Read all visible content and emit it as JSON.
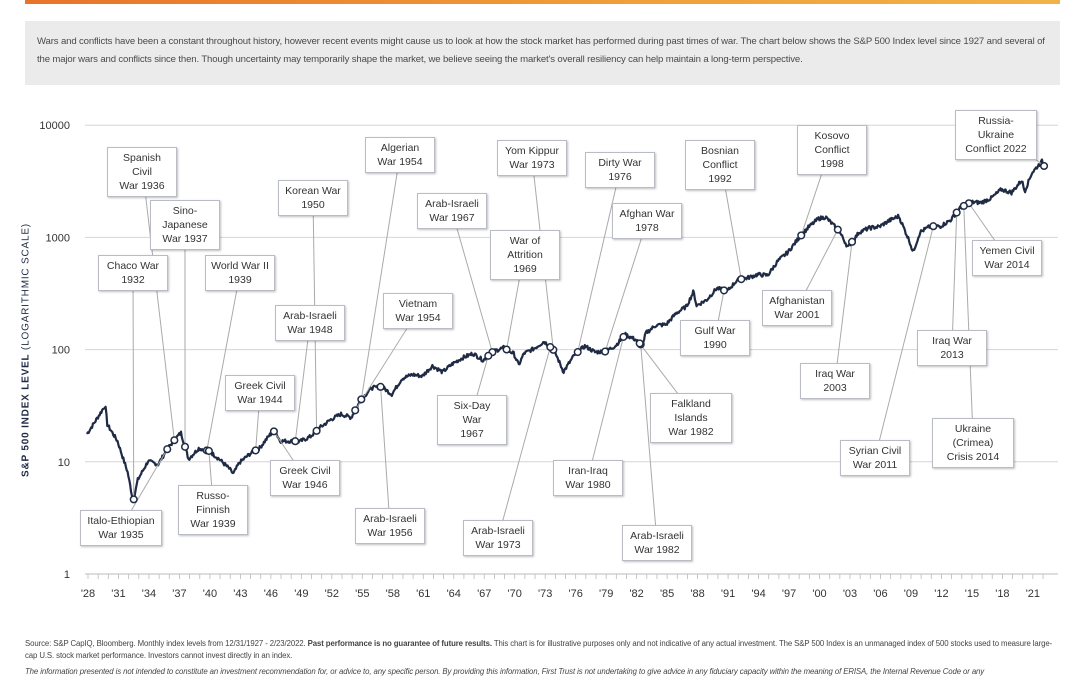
{
  "intro": "Wars and conflicts have been a constant throughout history, however recent events might cause us to look at how the stock market has performed during past times of war. The chart below shows the S&P 500 Index level since 1927 and several of the major wars and conflicts since then. Though uncertainty may temporarily shape the market, we believe seeing the market's overall resiliency can help maintain a long-term perspective.",
  "colors": {
    "accent_bar": "#e8742a",
    "line": "#1f2a44",
    "intro_bg": "#ebebeb"
  },
  "chart_data": {
    "type": "line",
    "ylabel_bold": "S&P 500 INDEX LEVEL",
    "ylabel_light": "(LOGARITHMIC SCALE)",
    "yscale": "log",
    "ylim": [
      1,
      10000
    ],
    "yticks": [
      "1",
      "10",
      "100",
      "1000",
      "10000"
    ],
    "yticks_values": [
      1,
      10,
      100,
      1000,
      10000
    ],
    "xlim": [
      1927.9,
      2022.2
    ],
    "xticks": [
      "'28",
      "'31",
      "'34",
      "'37",
      "'40",
      "'43",
      "'46",
      "'49",
      "'52",
      "'55",
      "'58",
      "'61",
      "'64",
      "'67",
      "'70",
      "'73",
      "'76",
      "'79",
      "'82",
      "'85",
      "'88",
      "'91",
      "'94",
      "'97",
      "'00",
      "'03",
      "'06",
      "'09",
      "'12",
      "'15",
      "'18",
      "'21"
    ],
    "xticks_years": [
      1928,
      1931,
      1934,
      1937,
      1940,
      1943,
      1946,
      1949,
      1952,
      1955,
      1958,
      1961,
      1964,
      1967,
      1970,
      1973,
      1976,
      1979,
      1982,
      1985,
      1988,
      1991,
      1994,
      1997,
      2000,
      2003,
      2006,
      2009,
      2012,
      2015,
      2018,
      2021
    ],
    "grid": true,
    "series": [
      {
        "x": [
          1927.9,
          1928.9,
          1929.7,
          1929.9,
          1930.9,
          1931.9,
          1932.45,
          1932.9,
          1933.9,
          1934.9,
          1935.9,
          1936.9,
          1937.15,
          1937.9,
          1938.9,
          1939.9,
          1940.9,
          1941.9,
          1942.3,
          1942.9,
          1943.9,
          1944.9,
          1945.9,
          1946.4,
          1946.9,
          1947.9,
          1948.9,
          1949.9,
          1950.9,
          1951.9,
          1952.9,
          1953.9,
          1954.9,
          1955.9,
          1956.9,
          1957.9,
          1958.9,
          1959.9,
          1960.9,
          1961.9,
          1962.9,
          1963.9,
          1964.9,
          1965.9,
          1966.9,
          1967.9,
          1968.9,
          1969.9,
          1970.4,
          1970.9,
          1971.9,
          1972.9,
          1973.9,
          1974.8,
          1975.9,
          1976.9,
          1977.9,
          1978.9,
          1979.9,
          1980.9,
          1981.9,
          1982.6,
          1982.9,
          1983.9,
          1984.9,
          1985.9,
          1986.9,
          1987.6,
          1987.9,
          1988.9,
          1989.9,
          1990.9,
          1991.9,
          1992.9,
          1993.9,
          1994.9,
          1995.9,
          1996.9,
          1997.9,
          1998.9,
          1999.9,
          2000.6,
          2001.9,
          2002.8,
          2003.9,
          2004.9,
          2005.9,
          2006.9,
          2007.8,
          2008.9,
          2009.2,
          2009.9,
          2010.9,
          2011.9,
          2012.9,
          2013.9,
          2014.9,
          2015.9,
          2016.9,
          2017.9,
          2018.9,
          2019.9,
          2020.2,
          2020.9,
          2021.9,
          2022.15
        ],
        "values": [
          17.7,
          24.4,
          31.9,
          21.5,
          15.3,
          8.1,
          4.4,
          6.9,
          10.1,
          9.5,
          13.4,
          17.2,
          18.1,
          10.6,
          13.2,
          12.5,
          10.6,
          8.7,
          7.8,
          9.8,
          11.7,
          13.3,
          17.4,
          19.0,
          15.3,
          15.3,
          15.2,
          16.8,
          20.4,
          23.8,
          26.6,
          24.8,
          36.0,
          45.5,
          46.7,
          40.0,
          55.2,
          59.9,
          58.1,
          71.6,
          63.1,
          75.0,
          84.8,
          92.4,
          80.3,
          96.5,
          103.9,
          92.1,
          72.7,
          92.2,
          102.1,
          118.1,
          97.6,
          63.5,
          90.2,
          107.5,
          95.1,
          96.1,
          107.9,
          135.8,
          122.6,
          107.1,
          140.6,
          164.9,
          167.2,
          211.3,
          242.2,
          329.8,
          247.1,
          277.7,
          353.4,
          330.2,
          417.1,
          435.7,
          466.5,
          459.3,
          615.9,
          740.7,
          970.4,
          1229.2,
          1469.3,
          1517.7,
          1148.1,
          815.3,
          1111.9,
          1211.9,
          1248.3,
          1418.3,
          1549.4,
          903.3,
          735.1,
          1115.1,
          1257.6,
          1257.6,
          1426.2,
          1848.4,
          2058.9,
          2043.9,
          2238.8,
          2673.6,
          2506.9,
          3230.8,
          2584.6,
          3756.1,
          4766.2,
          4225.5
        ]
      }
    ],
    "events": [
      {
        "label": "Chaco War 1932",
        "l1": "Chaco War",
        "l2": "1932",
        "year": 1932.5
      },
      {
        "label": "Spanish Civil War 1936",
        "l1": "Spanish Civil",
        "l2": "War 1936",
        "year": 1936.5
      },
      {
        "label": "Sino-Japanese War 1937",
        "l1": "Sino-Japanese",
        "l2": "War 1937",
        "year": 1937.55
      },
      {
        "label": "World War II 1939",
        "l1": "World War II",
        "l2": "1939",
        "year": 1939.7
      },
      {
        "label": "Italo-Ethiopian War 1935",
        "l1": "Italo-Ethiopian",
        "l2": "War 1935",
        "year": 1935.8
      },
      {
        "label": "Russo-Finnish War 1939",
        "l1": "Russo-Finnish",
        "l2": "War 1939",
        "year": 1939.9
      },
      {
        "label": "Greek Civil War 1944",
        "l1": "Greek Civil",
        "l2": "War 1944",
        "year": 1944.5
      },
      {
        "label": "Arab-Israeli War 1948",
        "l1": "Arab-Israeli",
        "l2": "War 1948",
        "year": 1948.4
      },
      {
        "label": "Korean War 1950",
        "l1": "Korean War",
        "l2": "1950",
        "year": 1950.5
      },
      {
        "label": "Greek Civil War 1946",
        "l1": "Greek Civil",
        "l2": "War 1946",
        "year": 1946.3
      },
      {
        "label": "Algerian War 1954",
        "l1": "Algerian",
        "l2": "War 1954",
        "year": 1954.9
      },
      {
        "label": "Vietnam War 1954",
        "l1": "Vietnam",
        "l2": "War 1954",
        "year": 1954.3
      },
      {
        "label": "Arab-Israeli War 1956",
        "l1": "Arab-Israeli",
        "l2": "War 1956",
        "year": 1956.8
      },
      {
        "label": "Arab-Israeli War 1967",
        "l1": "Arab-Israeli",
        "l2": "War 1967",
        "year": 1967.8
      },
      {
        "label": "Six-Day War 1967",
        "l1": "Six-Day War",
        "l2": "1967",
        "year": 1967.4
      },
      {
        "label": "Yom Kippur War 1973",
        "l1": "Yom Kippur",
        "l2": "War 1973",
        "year": 1973.8
      },
      {
        "label": "War of Attrition 1969",
        "l1": "War of",
        "l2": "Attrition 1969",
        "year": 1969.2
      },
      {
        "label": "Arab-Israeli War 1973",
        "l1": "Arab-Israeli",
        "l2": "War 1973",
        "year": 1973.5
      },
      {
        "label": "Dirty War 1976",
        "l1": "Dirty War",
        "l2": "1976",
        "year": 1976.2
      },
      {
        "label": "Afghan War 1978",
        "l1": "Afghan War",
        "l2": "1978",
        "year": 1978.9
      },
      {
        "label": "Iran-Iraq War 1980",
        "l1": "Iran-Iraq",
        "l2": "War 1980",
        "year": 1980.7
      },
      {
        "label": "Arab-Israeli War 1982",
        "l1": "Arab-Israeli",
        "l2": "War 1982",
        "year": 1982.4
      },
      {
        "label": "Falkland Islands War 1982",
        "l1": "Falkland Islands",
        "l2": "War 1982",
        "year": 1982.3
      },
      {
        "label": "Bosnian Conflict 1992",
        "l1": "Bosnian",
        "l2": "Conflict 1992",
        "year": 1992.3
      },
      {
        "label": "Gulf War 1990",
        "l1": "Gulf War",
        "l2": "1990",
        "year": 1990.6
      },
      {
        "label": "Kosovo Conflict 1998",
        "l1": "Kosovo",
        "l2": "Conflict 1998",
        "year": 1998.2
      },
      {
        "label": "Afghanistan War 2001",
        "l1": "Afghanistan",
        "l2": "War 2001",
        "year": 2001.8
      },
      {
        "label": "Iraq War 2003",
        "l1": "Iraq War",
        "l2": "2003",
        "year": 2003.2
      },
      {
        "label": "Syrian Civil War 2011",
        "l1": "Syrian Civil",
        "l2": "War 2011",
        "year": 2011.2
      },
      {
        "label": "Russia-Ukraine Conflict 2022",
        "l1": "Russia-Ukraine",
        "l2": "Conflict 2022",
        "year": 2022.1
      },
      {
        "label": "Yemen Civil War 2014",
        "l1": "Yemen Civil",
        "l2": "War 2014",
        "year": 2014.7
      },
      {
        "label": "Iraq War 2013",
        "l1": "Iraq War",
        "l2": "2013",
        "year": 2013.5
      },
      {
        "label": "Ukraine (Crimea) Crisis 2014",
        "l1": "Ukraine (Crimea)",
        "l2": "Crisis 2014",
        "year": 2014.2
      }
    ]
  },
  "footer": {
    "source_a": "Source: S&P CapIQ, Bloomberg. Monthly index levels from 12/31/1927 - 2/23/2022. ",
    "source_bold": "Past performance is no guarantee of future results.",
    "source_b": " This chart is for illustrative purposes only and not indicative of any actual investment. The S&P 500 Index is an unmanaged index of 500 stocks used to measure large-cap U.S. stock market performance. Investors cannot invest directly in an index.",
    "disclaimer": "The information presented is not intended to constitute an investment recommendation for, or advice to, any specific person. By providing this information, First Trust is not undertaking to give advice in any fiduciary capacity within the meaning of ERISA, the Internal Revenue Code or any"
  }
}
